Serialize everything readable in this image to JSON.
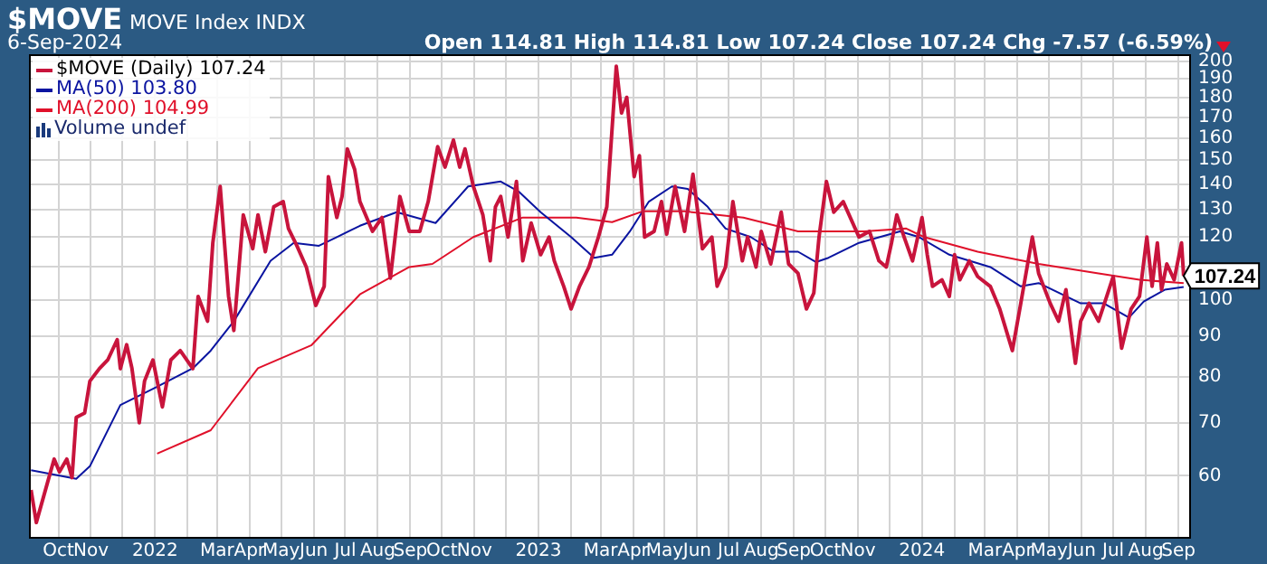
{
  "chart_data": {
    "type": "line",
    "title": "$MOVE",
    "subtitle": "MOVE Index INDX",
    "annotations": [
      "6-Sep-2024",
      "Open 114.81 High 114.81 Low 107.24 Close 107.24 Chg -7.57 (-6.59%)",
      "Volume undef",
      {
        "text": "107.24",
        "x": "2024-09-06",
        "y": 107.24
      }
    ],
    "xlim": [
      "2021-09-03",
      "2024-09-13"
    ],
    "xticks": [
      {
        "value": "2021-10",
        "label": "Oct"
      },
      {
        "value": "2021-11",
        "label": "Nov"
      },
      {
        "value": "2021-12",
        "label": null
      },
      {
        "value": "2022-01",
        "label": "2022"
      },
      {
        "value": "2022-02",
        "label": null
      },
      {
        "value": "2022-03",
        "label": "Mar"
      },
      {
        "value": "2022-04",
        "label": "Apr"
      },
      {
        "value": "2022-05",
        "label": "May"
      },
      {
        "value": "2022-06",
        "label": "Jun"
      },
      {
        "value": "2022-07",
        "label": "Jul"
      },
      {
        "value": "2022-08",
        "label": "Aug"
      },
      {
        "value": "2022-09",
        "label": "Sep"
      },
      {
        "value": "2022-10",
        "label": "Oct"
      },
      {
        "value": "2022-11",
        "label": "Nov"
      },
      {
        "value": "2022-12",
        "label": null
      },
      {
        "value": "2023-01",
        "label": "2023"
      },
      {
        "value": "2023-02",
        "label": null
      },
      {
        "value": "2023-03",
        "label": "Mar"
      },
      {
        "value": "2023-04",
        "label": "Apr"
      },
      {
        "value": "2023-05",
        "label": "May"
      },
      {
        "value": "2023-06",
        "label": "Jun"
      },
      {
        "value": "2023-07",
        "label": "Jul"
      },
      {
        "value": "2023-08",
        "label": "Aug"
      },
      {
        "value": "2023-09",
        "label": "Sep"
      },
      {
        "value": "2023-10",
        "label": "Oct"
      },
      {
        "value": "2023-11",
        "label": "Nov"
      },
      {
        "value": "2023-12",
        "label": null
      },
      {
        "value": "2024-01",
        "label": "2024"
      },
      {
        "value": "2024-02",
        "label": null
      },
      {
        "value": "2024-03",
        "label": "Mar"
      },
      {
        "value": "2024-04",
        "label": "Apr"
      },
      {
        "value": "2024-05",
        "label": "May"
      },
      {
        "value": "2024-06",
        "label": "Jun"
      },
      {
        "value": "2024-07",
        "label": "Jul"
      },
      {
        "value": "2024-08",
        "label": "Aug"
      },
      {
        "value": "2024-09",
        "label": "Sep"
      }
    ],
    "ylim": [
      50,
      204
    ],
    "yticks": [
      60,
      70,
      80,
      90,
      100,
      {
        "value": 110,
        "label": null
      },
      120,
      130,
      140,
      150,
      160,
      170,
      180,
      190,
      200
    ],
    "log": "y",
    "grid": true,
    "legend": "top left",
    "series": [
      {
        "name": "$MOVE (Daily) 107.24",
        "color": "#c8143c",
        "x": [
          "2021-09-05",
          "2021-09-10",
          "2021-09-22",
          "2021-09-27",
          "2021-10-02",
          "2021-10-09",
          "2021-10-14",
          "2021-10-18",
          "2021-10-26",
          "2021-10-31",
          "2021-11-09",
          "2021-11-17",
          "2021-11-26",
          "2021-11-29",
          "2021-12-05",
          "2021-12-10",
          "2021-12-17",
          "2021-12-22",
          "2021-12-30",
          "2022-01-08",
          "2022-01-16",
          "2022-01-25",
          "2022-02-06",
          "2022-02-11",
          "2022-02-20",
          "2022-02-25",
          "2022-03-04",
          "2022-03-12",
          "2022-03-17",
          "2022-03-26",
          "2022-04-04",
          "2022-04-09",
          "2022-04-16",
          "2022-04-24",
          "2022-05-03",
          "2022-05-08",
          "2022-05-16",
          "2022-05-25",
          "2022-06-03",
          "2022-06-11",
          "2022-06-15",
          "2022-06-23",
          "2022-06-28",
          "2022-07-03",
          "2022-07-10",
          "2022-07-15",
          "2022-07-27",
          "2022-08-05",
          "2022-08-13",
          "2022-08-22",
          "2022-08-31",
          "2022-09-10",
          "2022-09-18",
          "2022-09-27",
          "2022-10-04",
          "2022-10-12",
          "2022-10-18",
          "2022-10-23",
          "2022-10-31",
          "2022-11-09",
          "2022-11-16",
          "2022-11-21",
          "2022-11-26",
          "2022-12-03",
          "2022-12-11",
          "2022-12-17",
          "2022-12-25",
          "2023-01-03",
          "2023-01-11",
          "2023-01-16",
          "2023-01-25",
          "2023-02-01",
          "2023-02-09",
          "2023-02-18",
          "2023-02-27",
          "2023-03-07",
          "2023-03-16",
          "2023-03-21",
          "2023-03-26",
          "2023-04-02",
          "2023-04-07",
          "2023-04-12",
          "2023-04-21",
          "2023-04-28",
          "2023-05-03",
          "2023-05-11",
          "2023-05-20",
          "2023-05-28",
          "2023-06-06",
          "2023-06-15",
          "2023-06-20",
          "2023-06-28",
          "2023-07-05",
          "2023-07-14",
          "2023-07-19",
          "2023-07-27",
          "2023-08-01",
          "2023-08-10",
          "2023-08-20",
          "2023-08-27",
          "2023-09-05",
          "2023-09-13",
          "2023-09-20",
          "2023-09-25",
          "2023-10-02",
          "2023-10-09",
          "2023-10-18",
          "2023-11-02",
          "2023-11-12",
          "2023-11-21",
          "2023-11-28",
          "2023-12-03",
          "2023-12-08",
          "2023-12-15",
          "2023-12-23",
          "2024-01-01",
          "2024-01-06",
          "2024-01-11",
          "2024-01-20",
          "2024-01-27",
          "2024-02-01",
          "2024-02-06",
          "2024-02-15",
          "2024-02-23",
          "2024-03-06",
          "2024-03-15",
          "2024-03-27",
          "2024-04-04",
          "2024-04-15",
          "2024-04-21",
          "2024-05-02",
          "2024-05-10",
          "2024-05-17",
          "2024-05-26",
          "2024-05-31",
          "2024-06-08",
          "2024-06-17",
          "2024-06-22",
          "2024-07-01",
          "2024-07-09",
          "2024-07-18",
          "2024-07-26",
          "2024-08-02",
          "2024-08-07",
          "2024-08-12",
          "2024-08-16",
          "2024-08-21",
          "2024-08-28",
          "2024-09-04",
          "2024-09-06"
        ],
        "values": [
          57.6,
          52.4,
          59.7,
          63,
          60.7,
          63,
          59.7,
          71.1,
          72,
          79,
          81.9,
          84,
          89.1,
          81.9,
          87.8,
          82,
          70,
          79,
          84,
          73.3,
          84,
          86.3,
          81.9,
          101,
          94,
          118,
          139,
          101,
          91.5,
          128,
          116,
          128,
          115,
          131,
          133,
          123,
          117,
          110,
          98.4,
          104,
          143,
          127,
          135,
          155,
          146,
          133,
          122,
          127,
          106.5,
          135,
          122,
          122,
          133,
          156,
          147,
          159,
          147,
          155,
          139,
          128,
          112,
          131,
          135,
          120,
          141,
          112,
          125,
          114,
          120,
          112,
          104,
          97.4,
          104,
          110,
          120,
          131,
          197,
          172,
          180,
          143,
          152,
          120,
          122,
          133,
          121,
          139,
          122,
          144,
          116,
          120,
          104,
          110,
          133,
          112,
          120,
          110,
          122,
          111,
          129,
          111,
          108,
          97.4,
          102,
          120,
          141,
          129,
          133,
          120,
          122,
          112,
          110,
          118,
          128,
          120,
          112,
          127,
          114,
          104,
          106,
          101,
          114,
          106,
          112,
          107,
          104,
          97.4,
          86.3,
          99,
          120,
          108,
          99,
          94,
          103,
          83.2,
          94,
          99,
          94,
          98.4,
          107,
          86.9,
          97.4,
          101,
          120,
          104,
          118,
          103,
          111,
          106,
          118,
          107.24
        ]
      },
      {
        "name": "MA(50) 103.80",
        "color": "#0a14a0",
        "x": [
          "2021-09-05",
          "2021-10-18",
          "2021-10-31",
          "2021-11-29",
          "2022-01-03",
          "2022-02-06",
          "2022-02-23",
          "2022-03-17",
          "2022-04-21",
          "2022-05-13",
          "2022-06-06",
          "2022-06-23",
          "2022-07-15",
          "2022-08-19",
          "2022-09-25",
          "2022-10-26",
          "2022-11-26",
          "2022-12-13",
          "2023-01-03",
          "2023-02-01",
          "2023-02-23",
          "2023-03-12",
          "2023-03-29",
          "2023-04-16",
          "2023-05-08",
          "2023-05-23",
          "2023-06-11",
          "2023-06-28",
          "2023-07-22",
          "2023-08-13",
          "2023-09-05",
          "2023-09-22",
          "2023-10-04",
          "2023-11-02",
          "2023-12-11",
          "2023-12-29",
          "2024-01-27",
          "2024-03-06",
          "2024-04-04",
          "2024-04-21",
          "2024-05-31",
          "2024-06-22",
          "2024-07-16",
          "2024-07-30",
          "2024-08-19",
          "2024-09-06"
        ],
        "values": [
          61,
          59.5,
          61.7,
          73.7,
          77.7,
          82,
          86.3,
          94,
          112,
          118,
          117,
          120,
          124,
          129,
          125,
          139,
          141,
          137,
          129,
          120,
          113,
          114,
          122,
          133,
          139,
          138,
          131,
          123,
          120,
          115,
          115,
          111.6,
          113,
          118,
          122,
          120,
          114,
          110,
          104,
          105,
          99,
          99,
          95,
          99.5,
          103,
          103.8
        ]
      },
      {
        "name": "MA(200) 104.99",
        "color": "#e0102a",
        "x": [
          "2022-01-03",
          "2022-02-23",
          "2022-04-09",
          "2022-05-30",
          "2022-07-15",
          "2022-08-31",
          "2022-09-22",
          "2022-10-31",
          "2022-12-17",
          "2023-02-06",
          "2023-03-12",
          "2023-04-10",
          "2023-05-20",
          "2023-07-15",
          "2023-09-05",
          "2023-11-07",
          "2023-12-17",
          "2024-01-03",
          "2024-02-23",
          "2024-04-21",
          "2024-06-17",
          "2024-07-26",
          "2024-09-06"
        ],
        "values": [
          64,
          68.5,
          82,
          87.7,
          101.6,
          110,
          111,
          120,
          127,
          127,
          125.3,
          129.3,
          129.3,
          127,
          122,
          122,
          123,
          120,
          115,
          111,
          108,
          106,
          104.99
        ]
      }
    ]
  }
}
